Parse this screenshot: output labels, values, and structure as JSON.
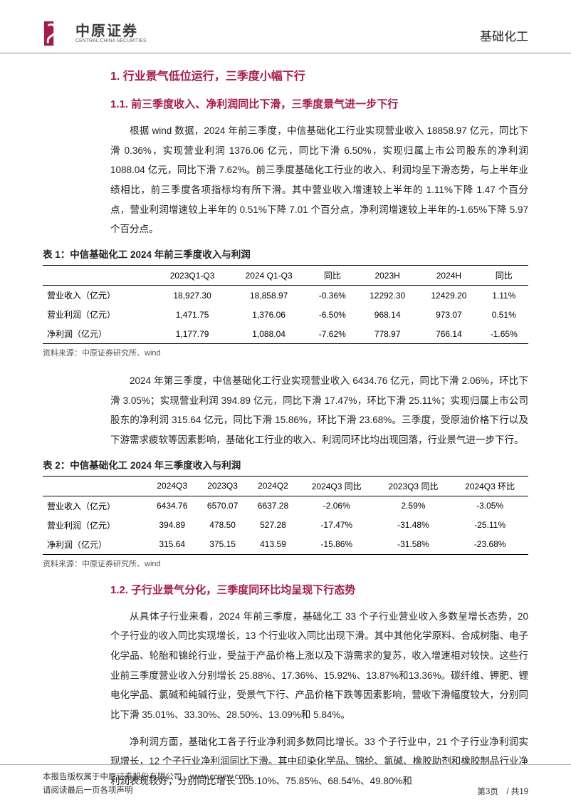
{
  "header": {
    "logo_cn": "中原证券",
    "logo_en": "CENTRAL CHINA SECURITIES",
    "category": "基础化工",
    "logo_color": "#a61b4b"
  },
  "section1": {
    "heading": "1. 行业景气低位运行，三季度小幅下行"
  },
  "section1_1": {
    "heading": "1.1. 前三季度收入、净利润同比下滑，三季度景气进一步下行",
    "para1": "根据 wind 数据，2024 年前三季度，中信基础化工行业实现营业收入 18858.97 亿元，同比下滑 0.36%，实现营业利润 1376.06 亿元，同比下滑 6.50%，实现归属上市公司股东的净利润 1088.04 亿元，同比下滑 7.62%。前三季度基础化工行业的收入、利润均呈下滑态势，与上半年业绩相比，前三季度各项指标均有所下滑。其中营业收入增速较上半年的 1.11%下降 1.47 个百分点，营业利润增速较上半年的 0.51%下降 7.01 个百分点，净利润增速较上半年的-1.65%下降 5.97 个百分点。"
  },
  "table1": {
    "title": "表 1：中信基础化工 2024 年前三季度收入与利润",
    "columns": [
      "",
      "2023Q1-Q3",
      "2024 Q1-Q3",
      "同比",
      "2023H",
      "2024H",
      "同比"
    ],
    "rows": [
      [
        "营业收入（亿元）",
        "18,927.30",
        "18,858.97",
        "-0.36%",
        "12292.30",
        "12429.20",
        "1.11%"
      ],
      [
        "营业利润（亿元）",
        "1,471.75",
        "1,376.06",
        "-6.50%",
        "968.14",
        "973.07",
        "0.51%"
      ],
      [
        "净利润（亿元）",
        "1,177.79",
        "1,088.04",
        "-7.62%",
        "778.97",
        "766.14",
        "-1.65%"
      ]
    ],
    "source": "资料来源：中原证券研究所、wind"
  },
  "para_after_t1": "2024 年第三季度，中信基础化工行业实现营业收入 6434.76 亿元，同比下滑 2.06%，环比下滑 3.05%；实现营业利润 394.89 亿元，同比下滑 17.47%，环比下滑 25.11%；实现归属上市公司股东的净利润 315.64 亿元，同比下滑 15.86%，环比下滑 23.68%。三季度，受原油价格下行以及下游需求疲软等因素影响，基础化工行业的收入、利润同环比均出现回落，行业景气进一步下行。",
  "table2": {
    "title": "表 2：中信基础化工 2024 年三季度收入与利润",
    "columns": [
      "",
      "2024Q3",
      "2023Q3",
      "2024Q2",
      "2024Q3 同比",
      "2023Q3 同比",
      "2024Q3 环比"
    ],
    "rows": [
      [
        "营业收入（亿元）",
        "6434.76",
        "6570.07",
        "6637.28",
        "-2.06%",
        "2.59%",
        "-3.05%"
      ],
      [
        "营业利润（亿元）",
        "394.89",
        "478.50",
        "527.28",
        "-17.47%",
        "-31.48%",
        "-25.11%"
      ],
      [
        "净利润（亿元）",
        "315.64",
        "375.15",
        "413.59",
        "-15.86%",
        "-31.58%",
        "-23.68%"
      ]
    ],
    "source": "资料来源：中原证券研究所、wind"
  },
  "section1_2": {
    "heading": "1.2. 子行业景气分化，三季度同环比均呈现下行态势",
    "para1": "从具体子行业来看，2024 年前三季度，基础化工 33 个子行业营业收入多数呈增长态势，20 个子行业的收入同比实现增长，13 个行业收入同比出现下滑。其中其他化学原料、合成树脂、电子化学品、轮胎和锦纶行业，受益于产品价格上涨以及下游需求的复苏，收入增速相对较快。这些行业前三季度营业收入分别增长 25.88%、17.36%、15.92%、13.87%和13.36%。碳纤维、钾肥、锂电化学品、氯碱和纯碱行业，受景气下行、产品价格下跌等因素影响，营收下滑幅度较大，分别同比下滑 35.01%、33.30%、28.50%、13.09%和 5.84%。",
    "para2": "净利润方面，基础化工各子行业净利润多数同比增长。33 个子行业中，21 个子行业净利润实现增长，12 个子行业净利润同比下滑。其中印染化学品、锦纶、氯碱、橡胶助剂和橡胶制品行业净利润表现较好，分别同比增长 105.10%、75.85%、68.54%、49.80%和"
  },
  "footer": {
    "line1": "本报告版权属于中原证券股份有限公司　www.ccnew.com",
    "line2": "请阅读最后一页各项声明",
    "page": "第3页　/ 共19"
  },
  "colors": {
    "accent": "#a61b4b",
    "text": "#222222",
    "border": "#000000",
    "light_border": "#aaaaaa",
    "background": "#ffffff"
  }
}
